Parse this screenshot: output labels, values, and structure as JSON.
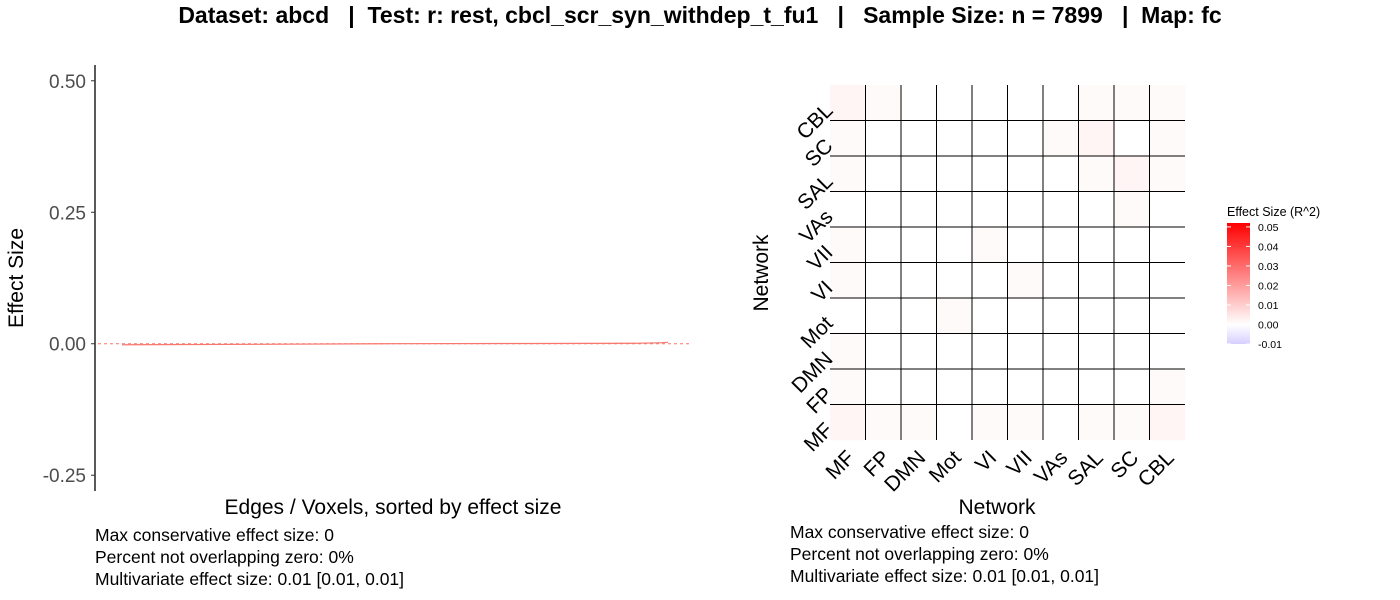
{
  "title": "Dataset: abcd   |  Test: r: rest, cbcl_scr_syn_withdep_t_fu1   |   Sample Size: n = 7899   |  Map: fc",
  "left_stats": {
    "max_conservative": "Max conservative effect size: 0",
    "percent_nonzero": "Percent not overlapping zero: 0%",
    "multivariate": "Multivariate effect size: 0.01 [0.01, 0.01]"
  },
  "right_stats": {
    "max_conservative": "Max conservative effect size: 0",
    "percent_nonzero": "Percent not overlapping zero: 0%",
    "multivariate": "Multivariate effect size: 0.01 [0.01, 0.01]"
  },
  "chart_data": [
    {
      "type": "line",
      "xlabel": "Edges / Voxels, sorted by effect size",
      "ylabel": "Effect Size",
      "ylim": [
        -0.28,
        0.53
      ],
      "yticks": [
        "0.50",
        "0.25",
        "0.00",
        "-0.25"
      ],
      "ytick_values": [
        0.5,
        0.25,
        0.0,
        -0.25
      ],
      "reference_line": 0,
      "series": [
        {
          "x": [
            0,
            0.25,
            0.5,
            0.75,
            0.95,
            0.99,
            1.0
          ],
          "y": [
            -0.002,
            -0.001,
            0.0,
            0.0005,
            0.001,
            0.002,
            0.003
          ]
        }
      ],
      "colors": {
        "line": "#f8766d",
        "reference": "#f8766d"
      }
    },
    {
      "type": "heatmap",
      "xlabel": "Network",
      "ylabel": "Network",
      "networks": [
        "MF",
        "FP",
        "DMN",
        "Mot",
        "VI",
        "VII",
        "VAs",
        "SAL",
        "SC",
        "CBL"
      ],
      "values": [
        [
          0.002,
          0.001,
          0.001,
          0.0,
          0.001,
          0.001,
          0.0,
          0.001,
          0.001,
          0.002
        ],
        [
          0.001,
          0.0,
          0.0,
          0.0,
          0.0,
          0.0,
          0.0,
          0.0,
          0.0,
          0.001
        ],
        [
          0.001,
          0.0,
          0.0,
          0.0,
          0.0,
          0.0,
          0.0,
          0.0,
          0.0,
          0.0
        ],
        [
          0.0,
          0.0,
          0.0,
          0.001,
          0.0,
          0.0,
          0.0,
          0.0,
          0.0,
          0.0
        ],
        [
          0.001,
          0.0,
          0.0,
          0.0,
          0.0,
          0.001,
          0.0,
          0.0,
          0.0,
          0.0
        ],
        [
          0.001,
          0.0,
          0.0,
          0.0,
          0.001,
          0.0,
          0.0,
          0.0,
          0.0,
          0.0
        ],
        [
          0.0,
          0.0,
          0.0,
          0.0,
          0.0,
          0.0,
          0.0,
          0.0,
          0.001,
          0.0
        ],
        [
          0.001,
          0.0,
          0.0,
          0.0,
          0.0,
          0.0,
          0.0,
          0.001,
          0.002,
          0.001
        ],
        [
          0.001,
          0.0,
          0.0,
          0.0,
          0.0,
          0.0,
          0.001,
          0.002,
          0.0,
          0.001
        ],
        [
          0.002,
          0.001,
          0.0,
          0.0,
          0.0,
          0.0,
          0.0,
          0.001,
          0.001,
          0.001
        ]
      ],
      "legend": {
        "title": "Effect Size (R^2)",
        "ticks": [
          "0.05",
          "0.04",
          "0.03",
          "0.02",
          "0.01",
          "0.00",
          "-0.01"
        ],
        "tick_values": [
          0.05,
          0.04,
          0.03,
          0.02,
          0.01,
          0.0,
          -0.01
        ],
        "min": -0.01,
        "max": 0.052,
        "placement": "right"
      },
      "colors": {
        "high": "#ff0000",
        "mid": "#ffffff",
        "low": "#d8cfff",
        "grid": "#000000"
      }
    }
  ]
}
